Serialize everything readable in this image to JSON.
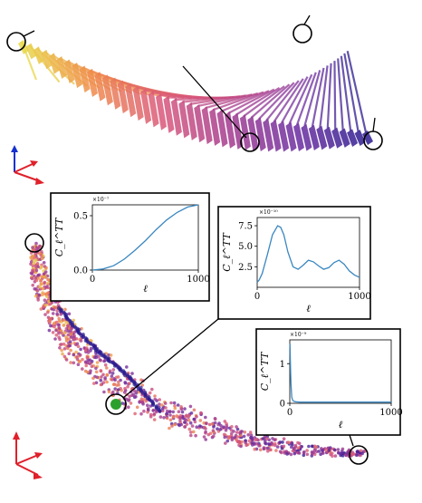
{
  "chart_data": [
    {
      "type": "line",
      "panel": "inset-1",
      "xlabel": "ℓ",
      "ylabel": "C_ℓ^TT",
      "xlim": [
        0,
        1000
      ],
      "ylim": [
        0,
        0.6
      ],
      "y_exponent": "×10⁻⁷",
      "x_ticks": [
        "0",
        "1000"
      ],
      "y_ticks": [
        "0.0",
        "0.5"
      ],
      "y_tick_values": [
        0.0,
        0.5
      ],
      "series": [
        {
          "x": [
            0,
            100,
            200,
            300,
            400,
            500,
            600,
            700,
            800,
            900,
            1000
          ],
          "y": [
            0.0,
            0.01,
            0.04,
            0.1,
            0.18,
            0.27,
            0.37,
            0.46,
            0.53,
            0.58,
            0.6
          ]
        }
      ]
    },
    {
      "type": "line",
      "panel": "inset-2",
      "xlabel": "ℓ",
      "ylabel": "C_ℓ^TT",
      "xlim": [
        0,
        1000
      ],
      "ylim": [
        0,
        8.5
      ],
      "y_exponent": "×10⁻¹⁰",
      "x_ticks": [
        "0",
        "1000"
      ],
      "y_ticks": [
        "2.5",
        "5.0",
        "7.5"
      ],
      "y_tick_values": [
        2.5,
        5.0,
        7.5
      ],
      "series": [
        {
          "x": [
            0,
            20,
            50,
            100,
            150,
            200,
            230,
            260,
            300,
            350,
            400,
            450,
            500,
            550,
            600,
            650,
            700,
            750,
            800,
            850,
            900,
            950,
            1000
          ],
          "y": [
            0.6,
            0.9,
            1.7,
            4.0,
            6.4,
            7.5,
            7.3,
            6.4,
            4.3,
            2.5,
            2.2,
            2.7,
            3.3,
            3.1,
            2.6,
            2.2,
            2.4,
            3.0,
            3.3,
            2.8,
            2.0,
            1.5,
            1.2
          ]
        }
      ]
    },
    {
      "type": "line",
      "panel": "inset-3",
      "xlabel": "ℓ",
      "ylabel": "C_ℓ^TT",
      "xlim": [
        0,
        1000
      ],
      "ylim": [
        0,
        1.6
      ],
      "y_exponent": "×10⁻⁹",
      "x_ticks": [
        "0",
        "1000"
      ],
      "y_ticks": [
        "0",
        "1"
      ],
      "y_tick_values": [
        0,
        1
      ],
      "series": [
        {
          "x": [
            2,
            5,
            8,
            12,
            16,
            20,
            30,
            40,
            60,
            100,
            200,
            400,
            600,
            800,
            1000
          ],
          "y": [
            1.5,
            1.1,
            0.8,
            0.5,
            0.3,
            0.15,
            0.07,
            0.05,
            0.04,
            0.03,
            0.03,
            0.03,
            0.03,
            0.03,
            0.03
          ]
        }
      ]
    }
  ],
  "colors": {
    "yellow": "#e8d84a",
    "orange": "#f08a4b",
    "pink": "#d9577a",
    "magenta": "#a23a8f",
    "purple": "#6a2ca0",
    "indigo": "#2a1a8e",
    "curve": "#3a87c0",
    "highlight": "#2ca02c",
    "axis_red": "#e0202a",
    "axis_blue": "#1530d0"
  }
}
